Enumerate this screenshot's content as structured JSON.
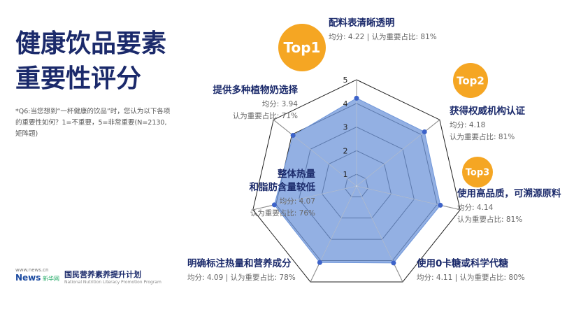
{
  "chart_data": {
    "type": "radar",
    "title": [
      "健康饮品要素",
      "重要性评分"
    ],
    "note": "*Q6:当您想到“一杯健康的饮品”时，您认为以下各项的重要性如何？1=不重要，5=非常重要(N=2130,矩阵题)",
    "categories": [
      "配料表清晰透明",
      "获得权威机构认证",
      "使用高品质，可溯源原料",
      "使用0卡糖或科学代糖",
      "明确标注热量和营养成分",
      "整体热量\n和脂肪含量较低",
      "提供多种植物奶选择"
    ],
    "series": [
      {
        "name": "均分:",
        "color": "#3d63c9",
        "fill": "#6f96da",
        "values": [
          4.22,
          4.18,
          4.14,
          4.11,
          4.09,
          4.07,
          3.94
        ]
      },
      {
        "name": "认为重要占比:",
        "values": [
          81,
          81,
          81,
          80,
          78,
          76,
          71
        ],
        "value_labels": [
          "81%",
          "81%",
          "81%",
          "80%",
          "78%",
          "76%",
          "71%"
        ]
      }
    ],
    "separator": "|",
    "badges": [
      "Top1",
      "Top2",
      "Top3"
    ],
    "badge_color": "#f5a623",
    "rlim": [
      0.5,
      5
    ],
    "rticks": [
      1,
      2,
      3,
      4,
      5
    ],
    "footer": {
      "site": "www.news.cn",
      "brand": "新华网",
      "logo": "News",
      "program": "国民营养素养提升计划",
      "program_en": "National Nutrition Literacy Promotion Program"
    }
  }
}
